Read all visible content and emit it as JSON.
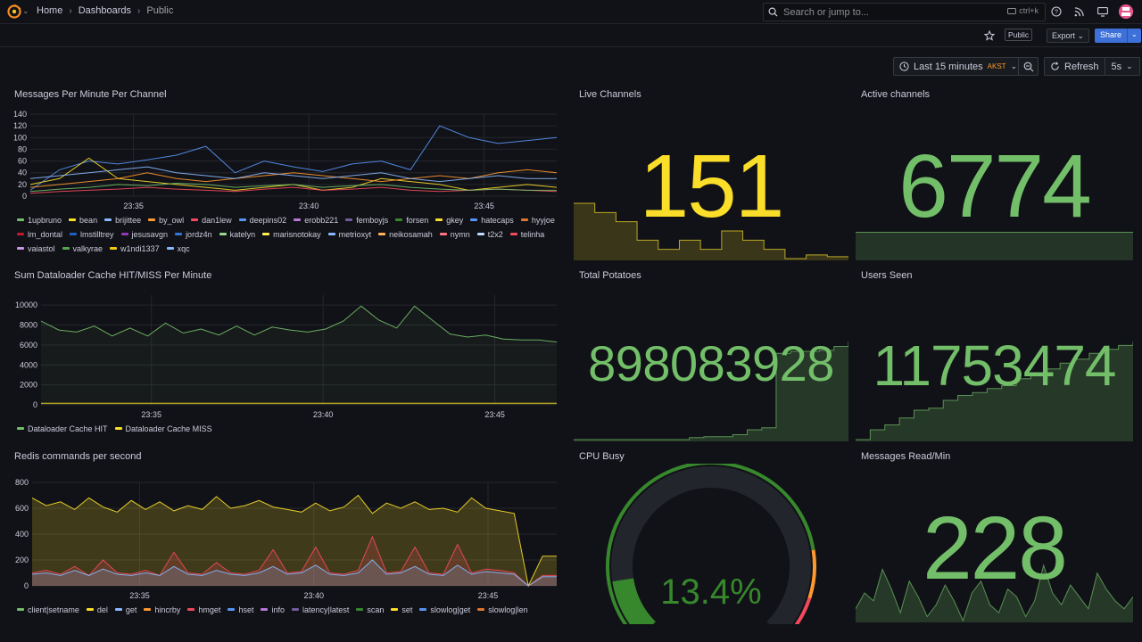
{
  "nav": {
    "breadcrumb": [
      "Home",
      "Dashboards",
      "Public"
    ],
    "search_placeholder": "Search or jump to...",
    "search_shortcut": "ctrl+k"
  },
  "toolbar": {
    "public_badge": "Public",
    "export_label": "Export",
    "share_label": "Share",
    "time_range": "Last 15 minutes",
    "timezone": "AKST",
    "refresh_label": "Refresh",
    "refresh_interval": "5s"
  },
  "colors": {
    "green": "#73bf69",
    "yellow": "#fade2a",
    "dark_green": "#37872d",
    "orange": "#ff9830",
    "red": "#f2495c"
  },
  "panels": {
    "messages_per_minute": {
      "title": "Messages Per Minute Per Channel",
      "legend": [
        {
          "label": "1upbruno",
          "color": "#73bf69"
        },
        {
          "label": "bean",
          "color": "#fade2a"
        },
        {
          "label": "brijittee",
          "color": "#8ab8ff"
        },
        {
          "label": "by_owl",
          "color": "#ff9830"
        },
        {
          "label": "dan1lew",
          "color": "#f2495c"
        },
        {
          "label": "deepins02",
          "color": "#5794f2"
        },
        {
          "label": "erobb221",
          "color": "#b877d9"
        },
        {
          "label": "femboyjs",
          "color": "#705da0"
        },
        {
          "label": "forsen",
          "color": "#37872d"
        },
        {
          "label": "gkey",
          "color": "#fade2a"
        },
        {
          "label": "hatecaps",
          "color": "#5794f2"
        },
        {
          "label": "hyyjoe",
          "color": "#e0752d"
        },
        {
          "label": "lm_dontal",
          "color": "#c4162a"
        },
        {
          "label": "lmstilltrey",
          "color": "#1f60c4"
        },
        {
          "label": "jesusavgn",
          "color": "#8f3bb8"
        },
        {
          "label": "jordz4n",
          "color": "#3274d9"
        },
        {
          "label": "katelyn",
          "color": "#96d98d"
        },
        {
          "label": "marisnotokay",
          "color": "#ffee52"
        },
        {
          "label": "metrioxyt",
          "color": "#8ab8ff"
        },
        {
          "label": "neikosamah",
          "color": "#ffb357"
        },
        {
          "label": "nymn",
          "color": "#ff7383"
        },
        {
          "label": "t2x2",
          "color": "#c0d8ff"
        },
        {
          "label": "telinha",
          "color": "#f2495c"
        },
        {
          "label": "vaiastol",
          "color": "#ca95e5"
        },
        {
          "label": "valkyrae",
          "color": "#56a64b"
        },
        {
          "label": "w1ndi1337",
          "color": "#f2cc0c"
        },
        {
          "label": "xqc",
          "color": "#8ab8ff"
        }
      ]
    },
    "dataloader": {
      "title": "Sum Dataloader Cache HIT/MISS Per Minute",
      "legend": [
        {
          "label": "Dataloader Cache HIT",
          "color": "#73bf69"
        },
        {
          "label": "Dataloader Cache MISS",
          "color": "#fade2a"
        }
      ]
    },
    "redis": {
      "title": "Redis commands per second",
      "legend": [
        {
          "label": "client|setname",
          "color": "#73bf69"
        },
        {
          "label": "del",
          "color": "#fade2a"
        },
        {
          "label": "get",
          "color": "#8ab8ff"
        },
        {
          "label": "hincrby",
          "color": "#ff9830"
        },
        {
          "label": "hmget",
          "color": "#f2495c"
        },
        {
          "label": "hset",
          "color": "#5794f2"
        },
        {
          "label": "info",
          "color": "#b877d9"
        },
        {
          "label": "latency|latest",
          "color": "#705da0"
        },
        {
          "label": "scan",
          "color": "#37872d"
        },
        {
          "label": "set",
          "color": "#fade2a"
        },
        {
          "label": "slowlog|get",
          "color": "#5794f2"
        },
        {
          "label": "slowlog|len",
          "color": "#e0752d"
        }
      ]
    },
    "live_channels": {
      "title": "Live Channels",
      "value": "151",
      "color": "#fade2a"
    },
    "active_channels": {
      "title": "Active channels",
      "value": "6774",
      "color": "#73bf69"
    },
    "total_potatoes": {
      "title": "Total Potatoes",
      "value": "898083928",
      "color": "#73bf69"
    },
    "users_seen": {
      "title": "Users Seen",
      "value": "11753474",
      "color": "#73bf69"
    },
    "cpu_busy": {
      "title": "CPU Busy",
      "value": "13.4%",
      "percent": 13.4,
      "color": "#37872d"
    },
    "messages_read": {
      "title": "Messages Read/Min",
      "value": "228",
      "color": "#73bf69"
    }
  },
  "chart_data": [
    {
      "type": "line",
      "title": "Messages Per Minute Per Channel",
      "ylim": [
        0,
        140
      ],
      "y_ticks": [
        "0",
        "20",
        "40",
        "60",
        "80",
        "100",
        "120",
        "140"
      ],
      "x_ticks": [
        "23:35",
        "23:40",
        "23:45"
      ],
      "series": [
        {
          "name": "deepins02",
          "values": [
            10,
            45,
            60,
            55,
            62,
            70,
            85,
            40,
            60,
            50,
            42,
            55,
            60,
            45,
            120,
            100,
            90,
            95,
            100
          ]
        },
        {
          "name": "bean",
          "values": [
            20,
            30,
            65,
            30,
            25,
            20,
            15,
            10,
            15,
            20,
            10,
            15,
            30,
            25,
            20,
            10,
            15,
            20,
            15
          ]
        },
        {
          "name": "by_owl",
          "values": [
            15,
            20,
            25,
            30,
            40,
            30,
            25,
            30,
            35,
            40,
            35,
            30,
            25,
            30,
            35,
            30,
            40,
            45,
            40
          ]
        },
        {
          "name": "brijittee",
          "values": [
            30,
            35,
            40,
            45,
            50,
            40,
            35,
            30,
            40,
            35,
            30,
            35,
            40,
            30,
            25,
            30,
            35,
            30,
            30
          ]
        },
        {
          "name": "dan1lew",
          "values": [
            5,
            8,
            10,
            12,
            15,
            12,
            10,
            8,
            12,
            15,
            10,
            12,
            15,
            10,
            8,
            10,
            12,
            10,
            8
          ]
        },
        {
          "name": "1upbruno",
          "values": [
            8,
            12,
            15,
            20,
            18,
            22,
            20,
            15,
            18,
            20,
            15,
            18,
            20,
            15,
            12,
            10,
            12,
            10,
            10
          ]
        }
      ]
    },
    {
      "type": "line",
      "title": "Sum Dataloader Cache HIT/MISS Per Minute",
      "ylim": [
        0,
        11000
      ],
      "y_ticks": [
        "0",
        "2000",
        "4000",
        "6000",
        "8000",
        "10000"
      ],
      "x_ticks": [
        "23:35",
        "23:40",
        "23:45"
      ],
      "series": [
        {
          "name": "Dataloader Cache HIT",
          "values": [
            8400,
            7500,
            7300,
            7900,
            6900,
            7700,
            6900,
            8200,
            7200,
            7600,
            7000,
            7900,
            7000,
            7800,
            7500,
            7300,
            7600,
            8400,
            9900,
            8500,
            7700,
            9900,
            8500,
            7100,
            6800,
            7000,
            6600,
            6500,
            6500,
            6300
          ]
        },
        {
          "name": "Dataloader Cache MISS",
          "values": [
            150,
            150,
            150,
            150,
            150,
            150,
            150,
            150,
            150,
            150,
            150,
            150,
            150,
            150,
            150,
            150,
            150,
            150,
            150,
            150,
            150,
            150,
            150,
            150,
            150,
            150,
            150,
            150,
            150,
            150
          ]
        }
      ]
    },
    {
      "type": "area",
      "title": "Redis commands per second",
      "ylim": [
        0,
        800
      ],
      "y_ticks": [
        "0",
        "200",
        "400",
        "600",
        "800"
      ],
      "x_ticks": [
        "23:35",
        "23:40",
        "23:45"
      ],
      "series": [
        {
          "name": "del",
          "values": [
            680,
            620,
            650,
            590,
            680,
            610,
            570,
            660,
            590,
            650,
            580,
            620,
            590,
            690,
            600,
            620,
            660,
            610,
            590,
            570,
            640,
            580,
            610,
            700,
            560,
            640,
            600,
            650,
            590,
            600,
            570,
            680,
            600,
            580,
            560,
            0,
            230,
            230
          ]
        },
        {
          "name": "hmget",
          "values": [
            100,
            120,
            90,
            150,
            80,
            200,
            100,
            90,
            120,
            80,
            260,
            100,
            90,
            180,
            100,
            90,
            120,
            280,
            100,
            110,
            300,
            100,
            90,
            120,
            380,
            100,
            110,
            300,
            100,
            90,
            320,
            100,
            130,
            120,
            100,
            0,
            80,
            80
          ]
        },
        {
          "name": "get",
          "values": [
            90,
            100,
            80,
            120,
            80,
            130,
            90,
            80,
            100,
            80,
            150,
            90,
            80,
            120,
            90,
            80,
            100,
            150,
            90,
            100,
            160,
            90,
            80,
            100,
            200,
            90,
            100,
            150,
            90,
            80,
            160,
            90,
            110,
            100,
            90,
            0,
            70,
            70
          ]
        }
      ]
    },
    {
      "type": "area",
      "title": "Live Channels (sparkline)",
      "values": [
        180,
        175,
        170,
        160,
        155,
        160,
        155,
        165,
        160,
        155,
        150,
        152,
        151,
        151
      ]
    },
    {
      "type": "area",
      "title": "Active channels (sparkline)",
      "values": [
        6774,
        6774,
        6774,
        6774,
        6774,
        6774,
        6774,
        6774,
        6774,
        6774,
        6774
      ]
    },
    {
      "type": "area",
      "title": "Total Potatoes (sparkline)",
      "values": [
        0,
        0,
        0,
        0,
        0,
        0,
        0,
        0,
        2,
        3,
        3,
        5,
        10,
        12,
        88,
        90,
        90,
        91,
        95,
        100
      ]
    },
    {
      "type": "area",
      "title": "Users Seen (sparkline)",
      "values": [
        0,
        10,
        15,
        22,
        30,
        32,
        40,
        45,
        48,
        52,
        55,
        62,
        66,
        72,
        78,
        82,
        88,
        92,
        96,
        100
      ]
    },
    {
      "type": "area",
      "title": "Messages Read/Min (sparkline)",
      "values": [
        130,
        170,
        150,
        230,
        180,
        120,
        200,
        160,
        110,
        140,
        190,
        150,
        100,
        170,
        200,
        140,
        120,
        180,
        160,
        110,
        150,
        240,
        170,
        140,
        190,
        160,
        130,
        220,
        180,
        150,
        130,
        160
      ]
    }
  ]
}
